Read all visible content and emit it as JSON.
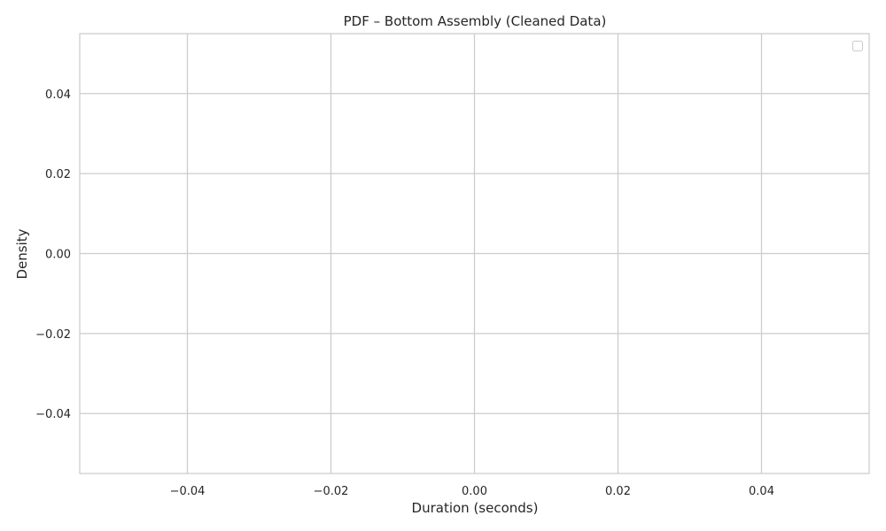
{
  "chart_data": {
    "type": "line",
    "title": "PDF – Bottom Assembly (Cleaned Data)",
    "xlabel": "Duration (seconds)",
    "ylabel": "Density",
    "xlim": [
      -0.055,
      0.055
    ],
    "ylim": [
      -0.055,
      0.055
    ],
    "x_ticks": [
      -0.04,
      -0.02,
      0.0,
      0.02,
      0.04
    ],
    "x_tick_labels": [
      "−0.04",
      "−0.02",
      "0.00",
      "0.02",
      "0.04"
    ],
    "y_ticks": [
      -0.04,
      -0.02,
      0.0,
      0.02,
      0.04
    ],
    "y_tick_labels": [
      "−0.04",
      "−0.02",
      "0.00",
      "0.02",
      "0.04"
    ],
    "grid": true,
    "legend": "top-right",
    "series": [],
    "colors": {
      "grid": "#cccccc",
      "spine": "#cccccc",
      "text": "#262626",
      "background": "#ffffff"
    }
  }
}
